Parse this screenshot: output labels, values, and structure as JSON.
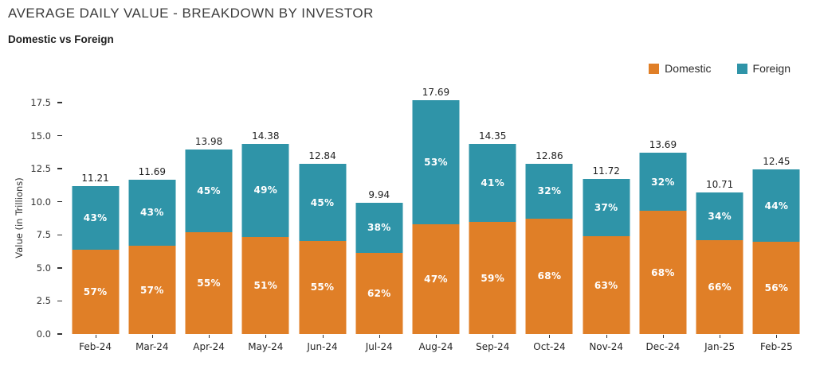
{
  "header": {
    "title": "AVERAGE DAILY VALUE - BREAKDOWN BY INVESTOR",
    "subtitle": "Domestic vs Foreign"
  },
  "legend": {
    "items": [
      {
        "label": "Domestic",
        "color": "#E07F27"
      },
      {
        "label": "Foreign",
        "color": "#2F94A8"
      }
    ],
    "position": "top-right"
  },
  "chart_data": {
    "type": "bar",
    "stacked": true,
    "title": "AVERAGE DAILY VALUE - BREAKDOWN BY INVESTOR",
    "subtitle": "Domestic vs Foreign",
    "ylabel": "Value (in Trillions)",
    "xlabel": "",
    "categories": [
      "Feb-24",
      "Mar-24",
      "Apr-24",
      "May-24",
      "Jun-24",
      "Jul-24",
      "Aug-24",
      "Sep-24",
      "Oct-24",
      "Nov-24",
      "Dec-24",
      "Jan-25",
      "Feb-25"
    ],
    "totals": [
      11.21,
      11.69,
      13.98,
      14.38,
      12.84,
      9.94,
      17.69,
      14.35,
      12.86,
      11.72,
      13.69,
      10.71,
      12.45
    ],
    "series": [
      {
        "name": "Domestic",
        "color": "#E07F27",
        "percents": [
          57,
          57,
          55,
          51,
          55,
          62,
          47,
          59,
          68,
          63,
          68,
          66,
          56
        ],
        "values_est": [
          6.39,
          6.66,
          7.69,
          7.33,
          7.06,
          6.16,
          8.31,
          8.47,
          8.74,
          7.38,
          9.31,
          7.07,
          6.97
        ]
      },
      {
        "name": "Foreign",
        "color": "#2F94A8",
        "percents": [
          43,
          43,
          45,
          49,
          45,
          38,
          53,
          41,
          32,
          37,
          32,
          34,
          44
        ],
        "values_est": [
          4.82,
          5.03,
          6.29,
          7.05,
          5.78,
          3.78,
          9.38,
          5.88,
          4.12,
          4.34,
          4.38,
          3.64,
          5.48
        ]
      }
    ],
    "y_ticks": [
      0.0,
      2.5,
      5.0,
      7.5,
      10.0,
      12.5,
      15.0,
      17.5
    ],
    "ylim": [
      0,
      18.5
    ],
    "grid": false,
    "legend_position": "top-right",
    "bar_label_color": "#ffffff",
    "total_label_color": "#1f1f1f"
  }
}
